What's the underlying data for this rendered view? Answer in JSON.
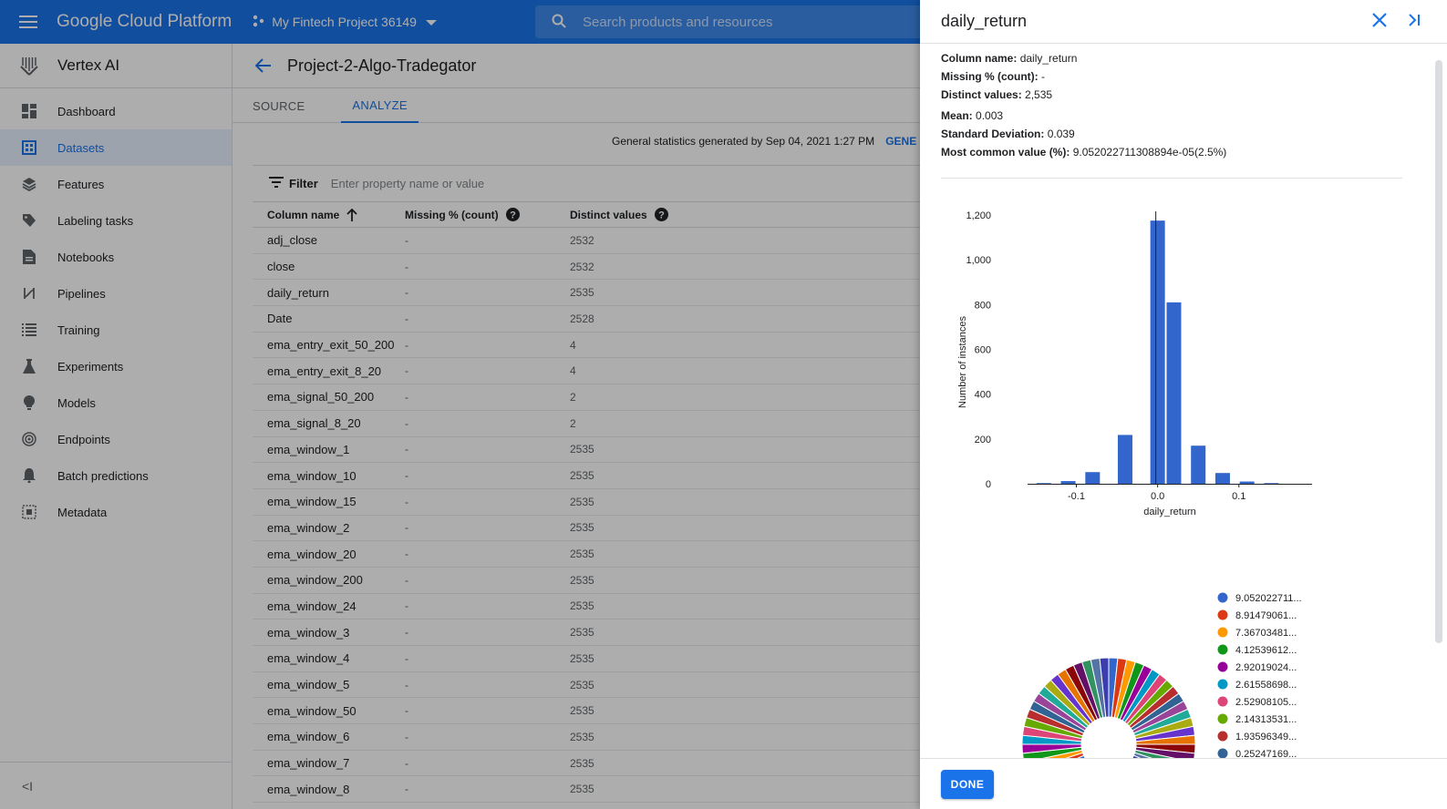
{
  "topbar": {
    "brand": "Google Cloud Platform",
    "project": "My Fintech Project 36149",
    "search_placeholder": "Search products and resources"
  },
  "sidebar": {
    "product": "Vertex AI",
    "items": [
      {
        "label": "Dashboard",
        "icon": "dashboard-icon"
      },
      {
        "label": "Datasets",
        "icon": "datasets-icon",
        "active": true
      },
      {
        "label": "Features",
        "icon": "features-icon"
      },
      {
        "label": "Labeling tasks",
        "icon": "label-icon"
      },
      {
        "label": "Notebooks",
        "icon": "notebook-icon"
      },
      {
        "label": "Pipelines",
        "icon": "pipelines-icon"
      },
      {
        "label": "Training",
        "icon": "training-icon"
      },
      {
        "label": "Experiments",
        "icon": "flask-icon"
      },
      {
        "label": "Models",
        "icon": "bulb-icon"
      },
      {
        "label": "Endpoints",
        "icon": "endpoints-icon"
      },
      {
        "label": "Batch predictions",
        "icon": "bell-icon"
      },
      {
        "label": "Metadata",
        "icon": "metadata-icon"
      }
    ],
    "collapse_label": "<I"
  },
  "main": {
    "title": "Project-2-Algo-Tradegator",
    "tabs": [
      {
        "label": "SOURCE"
      },
      {
        "label": "ANALYZE",
        "active": true
      }
    ],
    "stats_text": "General statistics generated by Sep 04, 2021 1:27 PM",
    "stats_link": "GENE",
    "filter_label": "Filter",
    "filter_placeholder": "Enter property name or value",
    "columns": [
      "Column name",
      "Missing % (count)",
      "Distinct values"
    ],
    "rows": [
      {
        "name": "adj_close",
        "missing": "-",
        "distinct": "2532"
      },
      {
        "name": "close",
        "missing": "-",
        "distinct": "2532"
      },
      {
        "name": "daily_return",
        "missing": "-",
        "distinct": "2535"
      },
      {
        "name": "Date",
        "missing": "-",
        "distinct": "2528"
      },
      {
        "name": "ema_entry_exit_50_200",
        "missing": "-",
        "distinct": "4"
      },
      {
        "name": "ema_entry_exit_8_20",
        "missing": "-",
        "distinct": "4"
      },
      {
        "name": "ema_signal_50_200",
        "missing": "-",
        "distinct": "2"
      },
      {
        "name": "ema_signal_8_20",
        "missing": "-",
        "distinct": "2"
      },
      {
        "name": "ema_window_1",
        "missing": "-",
        "distinct": "2535"
      },
      {
        "name": "ema_window_10",
        "missing": "-",
        "distinct": "2535"
      },
      {
        "name": "ema_window_15",
        "missing": "-",
        "distinct": "2535"
      },
      {
        "name": "ema_window_2",
        "missing": "-",
        "distinct": "2535"
      },
      {
        "name": "ema_window_20",
        "missing": "-",
        "distinct": "2535"
      },
      {
        "name": "ema_window_200",
        "missing": "-",
        "distinct": "2535"
      },
      {
        "name": "ema_window_24",
        "missing": "-",
        "distinct": "2535"
      },
      {
        "name": "ema_window_3",
        "missing": "-",
        "distinct": "2535"
      },
      {
        "name": "ema_window_4",
        "missing": "-",
        "distinct": "2535"
      },
      {
        "name": "ema_window_5",
        "missing": "-",
        "distinct": "2535"
      },
      {
        "name": "ema_window_50",
        "missing": "-",
        "distinct": "2535"
      },
      {
        "name": "ema_window_6",
        "missing": "-",
        "distinct": "2535"
      },
      {
        "name": "ema_window_7",
        "missing": "-",
        "distinct": "2535"
      },
      {
        "name": "ema_window_8",
        "missing": "-",
        "distinct": "2535"
      }
    ]
  },
  "panel": {
    "title": "daily_return",
    "stats": [
      {
        "label": "Column name:",
        "value": "daily_return"
      },
      {
        "label": "Missing % (count):",
        "value": "-"
      },
      {
        "label": "Distinct values:",
        "value": "2,535"
      },
      {
        "label": "Mean:",
        "value": "0.003"
      },
      {
        "label": "Standard Deviation:",
        "value": "0.039"
      },
      {
        "label": "Most common value (%):",
        "value": "9.052022711308894e-05(2.5%)"
      }
    ],
    "done_label": "DONE"
  },
  "chart_data": [
    {
      "type": "bar",
      "xlabel": "daily_return",
      "ylabel": "Number of instances",
      "x": [
        -0.14,
        -0.11,
        -0.08,
        -0.04,
        0.0,
        0.02,
        0.05,
        0.08,
        0.11,
        0.14
      ],
      "values": [
        3,
        12,
        52,
        218,
        1175,
        810,
        170,
        48,
        10,
        3
      ],
      "ylim": [
        0,
        1200
      ],
      "yticks": [
        "0",
        "200",
        "400",
        "600",
        "800",
        "1,000",
        "1,200"
      ],
      "yticks_values": [
        0,
        200,
        400,
        600,
        800,
        1000,
        1200
      ],
      "xticks": [
        "-0.1",
        "0.0",
        "0.1"
      ],
      "xticks_values": [
        -0.1,
        0.0,
        0.1
      ],
      "xlim": [
        -0.16,
        0.19
      ],
      "color": "#3366cc"
    },
    {
      "type": "pie",
      "legend": [
        {
          "label": "9.052022711...",
          "color": "#3366cc"
        },
        {
          "label": "8.91479061...",
          "color": "#dc3912"
        },
        {
          "label": "7.36703481...",
          "color": "#ff9900"
        },
        {
          "label": "4.12539612...",
          "color": "#109618"
        },
        {
          "label": "2.92019024...",
          "color": "#990099"
        },
        {
          "label": "2.61558698...",
          "color": "#0099c6"
        },
        {
          "label": "2.52908105...",
          "color": "#dd4477"
        },
        {
          "label": "2.14313531...",
          "color": "#66aa00"
        },
        {
          "label": "1.93596349...",
          "color": "#b82e2e"
        },
        {
          "label": "0.25247169...",
          "color": "#316395"
        }
      ],
      "slice_colors": [
        "#3366cc",
        "#dc3912",
        "#ff9900",
        "#109618",
        "#990099",
        "#0099c6",
        "#dd4477",
        "#66aa00",
        "#b82e2e",
        "#316395",
        "#994499",
        "#22aa99",
        "#aaaa11",
        "#6633cc",
        "#e67300",
        "#8b0707",
        "#651067",
        "#329262",
        "#5574a6",
        "#3b3eac"
      ]
    }
  ]
}
